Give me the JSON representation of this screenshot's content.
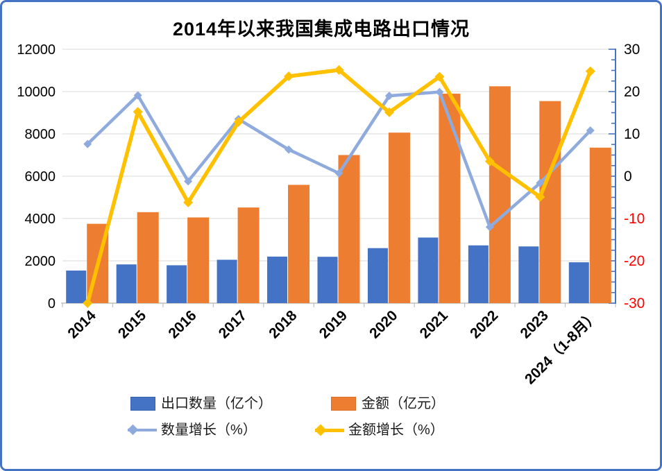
{
  "chart_data": {
    "type": "combo-bar-line",
    "title": "2014年以来我国集成电路出口情况",
    "categories": [
      "2014",
      "2015",
      "2016",
      "2017",
      "2018",
      "2019",
      "2020",
      "2021",
      "2022",
      "2023",
      "2024（1-8月）"
    ],
    "series": [
      {
        "name": "出口数量（亿个）",
        "type": "bar",
        "axis": "left",
        "color": "#4472C4",
        "values": [
          1540,
          1830,
          1790,
          2050,
          2200,
          2190,
          2600,
          3100,
          2730,
          2680,
          1930
        ]
      },
      {
        "name": "金额（亿元）",
        "type": "bar",
        "axis": "left",
        "color": "#ED7D31",
        "values": [
          3750,
          4300,
          4050,
          4520,
          5590,
          7000,
          8060,
          9900,
          10250,
          9550,
          7350
        ]
      },
      {
        "name": "数量增长（%）",
        "type": "line",
        "axis": "right",
        "color": "#8FAADC",
        "values": [
          7.6,
          19.1,
          -1.2,
          13.5,
          6.3,
          0.7,
          19.0,
          19.9,
          -12.0,
          -1.6,
          10.8
        ]
      },
      {
        "name": "金额增长（%）",
        "type": "line",
        "axis": "right",
        "color": "#FFC000",
        "values": [
          -30.0,
          15.2,
          -6.2,
          12.8,
          23.6,
          25.1,
          15.1,
          23.5,
          3.5,
          -4.9,
          24.8
        ]
      }
    ],
    "left_axis": {
      "min": 0,
      "max": 12000,
      "step": 2000,
      "tick_labels": [
        "12000",
        "10000",
        "8000",
        "6000",
        "4000",
        "2000",
        "0"
      ]
    },
    "right_axis": {
      "min": -30,
      "max": 30,
      "step": 10,
      "minor_step": 2.5,
      "tick_labels": [
        "30",
        "20",
        "10",
        "0",
        "-10",
        "-20",
        "-30"
      ],
      "axis_color": "#4472C4",
      "negative_label_color": "#FF0000"
    },
    "gridline_color": "#D9D9D9",
    "bottom_axis_color": "#BFBFBF",
    "legend_position": "bottom"
  }
}
